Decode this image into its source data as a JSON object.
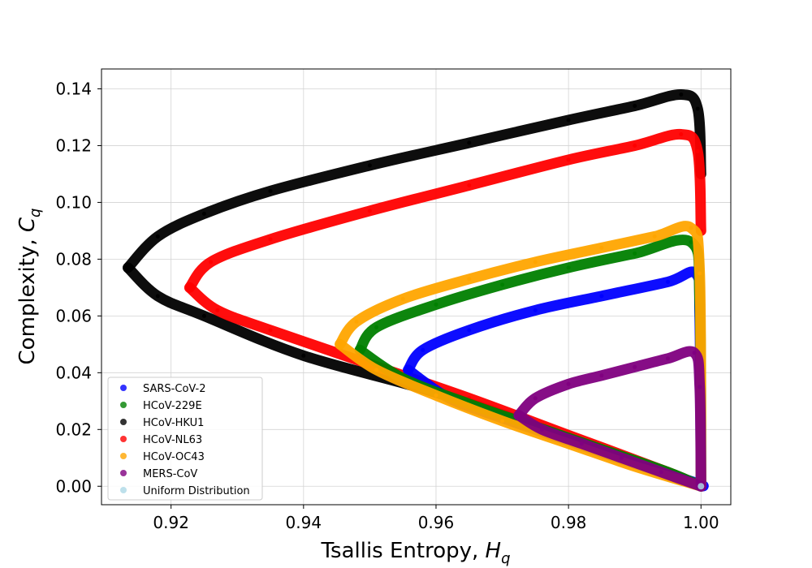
{
  "chart_data": {
    "type": "scatter",
    "title": "",
    "xlabel": "Tsallis Entropy, ",
    "xlabel_symbol": "H",
    "xlabel_sub": "q",
    "ylabel": "Complexity, ",
    "ylabel_symbol": "C",
    "ylabel_sub": "q",
    "xlim": [
      0.9095,
      1.0045
    ],
    "ylim": [
      -0.0065,
      0.147
    ],
    "xticks": [
      0.92,
      0.94,
      0.96,
      0.98,
      1.0
    ],
    "xtick_labels": [
      "0.92",
      "0.94",
      "0.96",
      "0.98",
      "1.00"
    ],
    "yticks": [
      0.0,
      0.02,
      0.04,
      0.06,
      0.08,
      0.1,
      0.12,
      0.14
    ],
    "ytick_labels": [
      "0.00",
      "0.02",
      "0.04",
      "0.06",
      "0.08",
      "0.10",
      "0.12",
      "0.14"
    ],
    "grid": true,
    "legend_position": "lower-left",
    "series": [
      {
        "name": "SARS-CoV-2",
        "color": "#0000ff",
        "upper": [
          [
            0.9558,
            0.041
          ],
          [
            0.958,
            0.048
          ],
          [
            0.965,
            0.055
          ],
          [
            0.975,
            0.062
          ],
          [
            0.985,
            0.067
          ],
          [
            0.995,
            0.072
          ],
          [
            0.9992,
            0.075
          ],
          [
            0.9998,
            0.06
          ],
          [
            1.0,
            0.0
          ]
        ],
        "lower": [
          [
            0.9558,
            0.041
          ],
          [
            0.962,
            0.031
          ],
          [
            0.97,
            0.024
          ],
          [
            0.98,
            0.016
          ],
          [
            0.99,
            0.008
          ],
          [
            0.9995,
            0.001
          ],
          [
            1.0,
            0.0
          ]
        ]
      },
      {
        "name": "HCoV-229E",
        "color": "#008000",
        "upper": [
          [
            0.9485,
            0.048
          ],
          [
            0.951,
            0.056
          ],
          [
            0.96,
            0.064
          ],
          [
            0.97,
            0.071
          ],
          [
            0.98,
            0.077
          ],
          [
            0.99,
            0.082
          ],
          [
            0.9985,
            0.086
          ],
          [
            0.9998,
            0.065
          ],
          [
            1.0,
            0.0
          ]
        ],
        "lower": [
          [
            0.9485,
            0.048
          ],
          [
            0.955,
            0.038
          ],
          [
            0.965,
            0.029
          ],
          [
            0.975,
            0.021
          ],
          [
            0.985,
            0.013
          ],
          [
            0.995,
            0.005
          ],
          [
            1.0,
            0.0
          ]
        ]
      },
      {
        "name": "HCoV-HKU1",
        "color": "#000000",
        "upper": [
          [
            0.9135,
            0.077
          ],
          [
            0.918,
            0.088
          ],
          [
            0.925,
            0.096
          ],
          [
            0.935,
            0.104
          ],
          [
            0.95,
            0.113
          ],
          [
            0.965,
            0.121
          ],
          [
            0.98,
            0.129
          ],
          [
            0.99,
            0.134
          ],
          [
            0.997,
            0.138
          ],
          [
            0.9995,
            0.133
          ],
          [
            1.0,
            0.11
          ]
        ],
        "lower": [
          [
            0.9135,
            0.077
          ],
          [
            0.918,
            0.067
          ],
          [
            0.925,
            0.06
          ],
          [
            0.94,
            0.046
          ],
          [
            0.96,
            0.033
          ],
          [
            0.98,
            0.017
          ],
          [
            0.995,
            0.004
          ],
          [
            1.0,
            0.0
          ]
        ]
      },
      {
        "name": "HCoV-NL63",
        "color": "#ff0000",
        "upper": [
          [
            0.9228,
            0.07
          ],
          [
            0.926,
            0.079
          ],
          [
            0.935,
            0.087
          ],
          [
            0.95,
            0.097
          ],
          [
            0.965,
            0.106
          ],
          [
            0.98,
            0.115
          ],
          [
            0.99,
            0.12
          ],
          [
            0.997,
            0.124
          ],
          [
            0.9995,
            0.118
          ],
          [
            1.0,
            0.09
          ]
        ],
        "lower": [
          [
            0.9228,
            0.07
          ],
          [
            0.927,
            0.062
          ],
          [
            0.935,
            0.055
          ],
          [
            0.95,
            0.043
          ],
          [
            0.965,
            0.031
          ],
          [
            0.98,
            0.018
          ],
          [
            0.995,
            0.005
          ],
          [
            1.0,
            0.0
          ]
        ]
      },
      {
        "name": "HCoV-OC43",
        "color": "#ffa500",
        "upper": [
          [
            0.9455,
            0.05
          ],
          [
            0.948,
            0.058
          ],
          [
            0.955,
            0.066
          ],
          [
            0.965,
            0.073
          ],
          [
            0.975,
            0.079
          ],
          [
            0.985,
            0.084
          ],
          [
            0.993,
            0.088
          ],
          [
            0.9985,
            0.091
          ],
          [
            0.9998,
            0.075
          ],
          [
            1.0,
            0.0
          ]
        ],
        "lower": [
          [
            0.9455,
            0.05
          ],
          [
            0.951,
            0.041
          ],
          [
            0.96,
            0.032
          ],
          [
            0.97,
            0.023
          ],
          [
            0.98,
            0.015
          ],
          [
            0.99,
            0.007
          ],
          [
            1.0,
            0.0
          ]
        ]
      },
      {
        "name": "MERS-CoV",
        "color": "#800080",
        "upper": [
          [
            0.9725,
            0.025
          ],
          [
            0.975,
            0.031
          ],
          [
            0.98,
            0.036
          ],
          [
            0.985,
            0.039
          ],
          [
            0.99,
            0.042
          ],
          [
            0.995,
            0.045
          ],
          [
            0.999,
            0.047
          ],
          [
            0.9998,
            0.035
          ],
          [
            1.0,
            0.0
          ]
        ],
        "lower": [
          [
            0.9725,
            0.025
          ],
          [
            0.976,
            0.02
          ],
          [
            0.982,
            0.015
          ],
          [
            0.988,
            0.01
          ],
          [
            0.994,
            0.005
          ],
          [
            1.0,
            0.0
          ]
        ]
      },
      {
        "name": "Uniform Distribution",
        "color": "#add8e6",
        "points": [
          [
            1.0,
            0.0
          ]
        ]
      }
    ]
  }
}
